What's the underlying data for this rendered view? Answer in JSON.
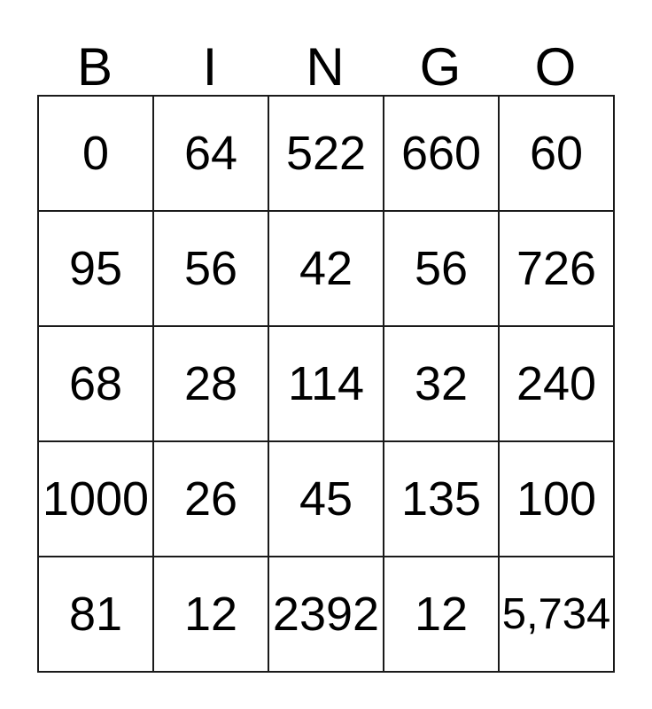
{
  "card": {
    "title": "BINGO",
    "header_letters": [
      "B",
      "I",
      "N",
      "G",
      "O"
    ],
    "rows": [
      [
        "0",
        "64",
        "522",
        "660",
        "60"
      ],
      [
        "95",
        "56",
        "42",
        "56",
        "726"
      ],
      [
        "68",
        "28",
        "114",
        "32",
        "240"
      ],
      [
        "1000",
        "26",
        "45",
        "135",
        "100"
      ],
      [
        "81",
        "12",
        "2392",
        "12",
        "5,734"
      ]
    ],
    "colors": {
      "text": "#000000",
      "border": "#1a1a1a",
      "background": "#ffffff"
    }
  }
}
